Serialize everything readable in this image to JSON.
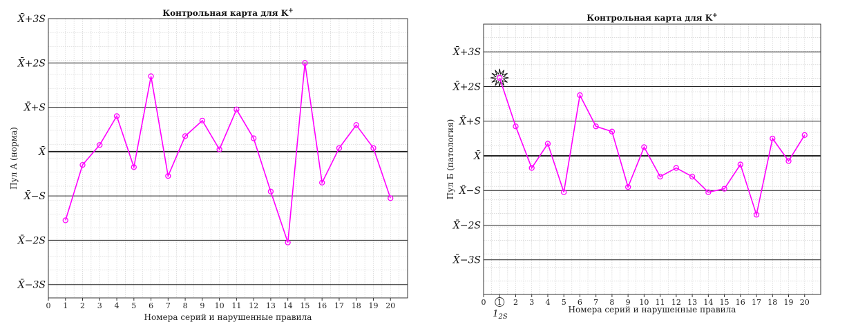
{
  "colors": {
    "series": "#ff00ff",
    "grid": "#c8c8c8",
    "level_line": "#222222",
    "violation_star": "#111111"
  },
  "chart_data": [
    {
      "type": "line",
      "title": "Контрольная карта для K",
      "title_superscript": "+",
      "xlabel": "Номера серий и нарушенные правила",
      "ylabel": "Пул А (норма)",
      "x_ticks": [
        "0",
        "1",
        "2",
        "3",
        "4",
        "5",
        "6",
        "7",
        "8",
        "9",
        "10",
        "11",
        "12",
        "13",
        "14",
        "15",
        "16",
        "17",
        "18",
        "19",
        "20"
      ],
      "xlim": [
        0,
        21
      ],
      "ylim": [
        -3.3,
        3.0
      ],
      "grid": true,
      "levels": [
        {
          "label": "X̄+3S",
          "value": 3
        },
        {
          "label": "X̄+2S",
          "value": 2
        },
        {
          "label": "X̄+S",
          "value": 1
        },
        {
          "label": "X̄",
          "value": 0
        },
        {
          "label": "X̄−S",
          "value": -1
        },
        {
          "label": "X̄−2S",
          "value": -2
        },
        {
          "label": "X̄−3S",
          "value": -3
        }
      ],
      "series": [
        {
          "x": [
            1,
            2,
            3,
            4,
            5,
            6,
            7,
            8,
            9,
            10,
            11,
            12,
            13,
            14,
            15,
            16,
            17,
            18,
            19,
            20
          ],
          "values": [
            -1.55,
            -0.3,
            0.15,
            0.8,
            -0.35,
            1.7,
            -0.55,
            0.35,
            0.7,
            0.05,
            0.95,
            0.3,
            -0.9,
            -2.05,
            2.0,
            -0.7,
            0.08,
            0.6,
            0.08,
            -1.05
          ]
        }
      ],
      "violations": []
    },
    {
      "type": "line",
      "title": "Контрольная карта для K",
      "title_superscript": "+",
      "xlabel": "Номера серий и нарушенные правила",
      "ylabel": "Пул Б (патология)",
      "x_ticks": [
        "0",
        "1",
        "2",
        "3",
        "4",
        "5",
        "6",
        "7",
        "8",
        "9",
        "10",
        "11",
        "12",
        "13",
        "14",
        "15",
        "16",
        "17",
        "18",
        "19",
        "20"
      ],
      "xlim": [
        0,
        21
      ],
      "ylim": [
        -4.0,
        3.8
      ],
      "grid": true,
      "levels": [
        {
          "label": "X̄+3S",
          "value": 3
        },
        {
          "label": "X̄+2S",
          "value": 2
        },
        {
          "label": "X̄+S",
          "value": 1
        },
        {
          "label": "X̄",
          "value": 0
        },
        {
          "label": "X̄−S",
          "value": -1
        },
        {
          "label": "X̄−2S",
          "value": -2
        },
        {
          "label": "X̄−3S",
          "value": -3
        }
      ],
      "series": [
        {
          "x": [
            1,
            2,
            3,
            4,
            5,
            6,
            7,
            8,
            9,
            10,
            11,
            12,
            13,
            14,
            15,
            16,
            17,
            18,
            19,
            20
          ],
          "values": [
            2.25,
            0.85,
            -0.35,
            0.35,
            -1.05,
            1.75,
            0.85,
            0.7,
            -0.9,
            0.25,
            -0.6,
            -0.35,
            -0.6,
            -1.05,
            -0.95,
            -0.25,
            -1.7,
            0.5,
            -0.15,
            0.6
          ]
        }
      ],
      "violations": [
        {
          "x": 1,
          "circled_label": "1",
          "rule": "1",
          "rule_suffix": "2S"
        }
      ]
    }
  ]
}
